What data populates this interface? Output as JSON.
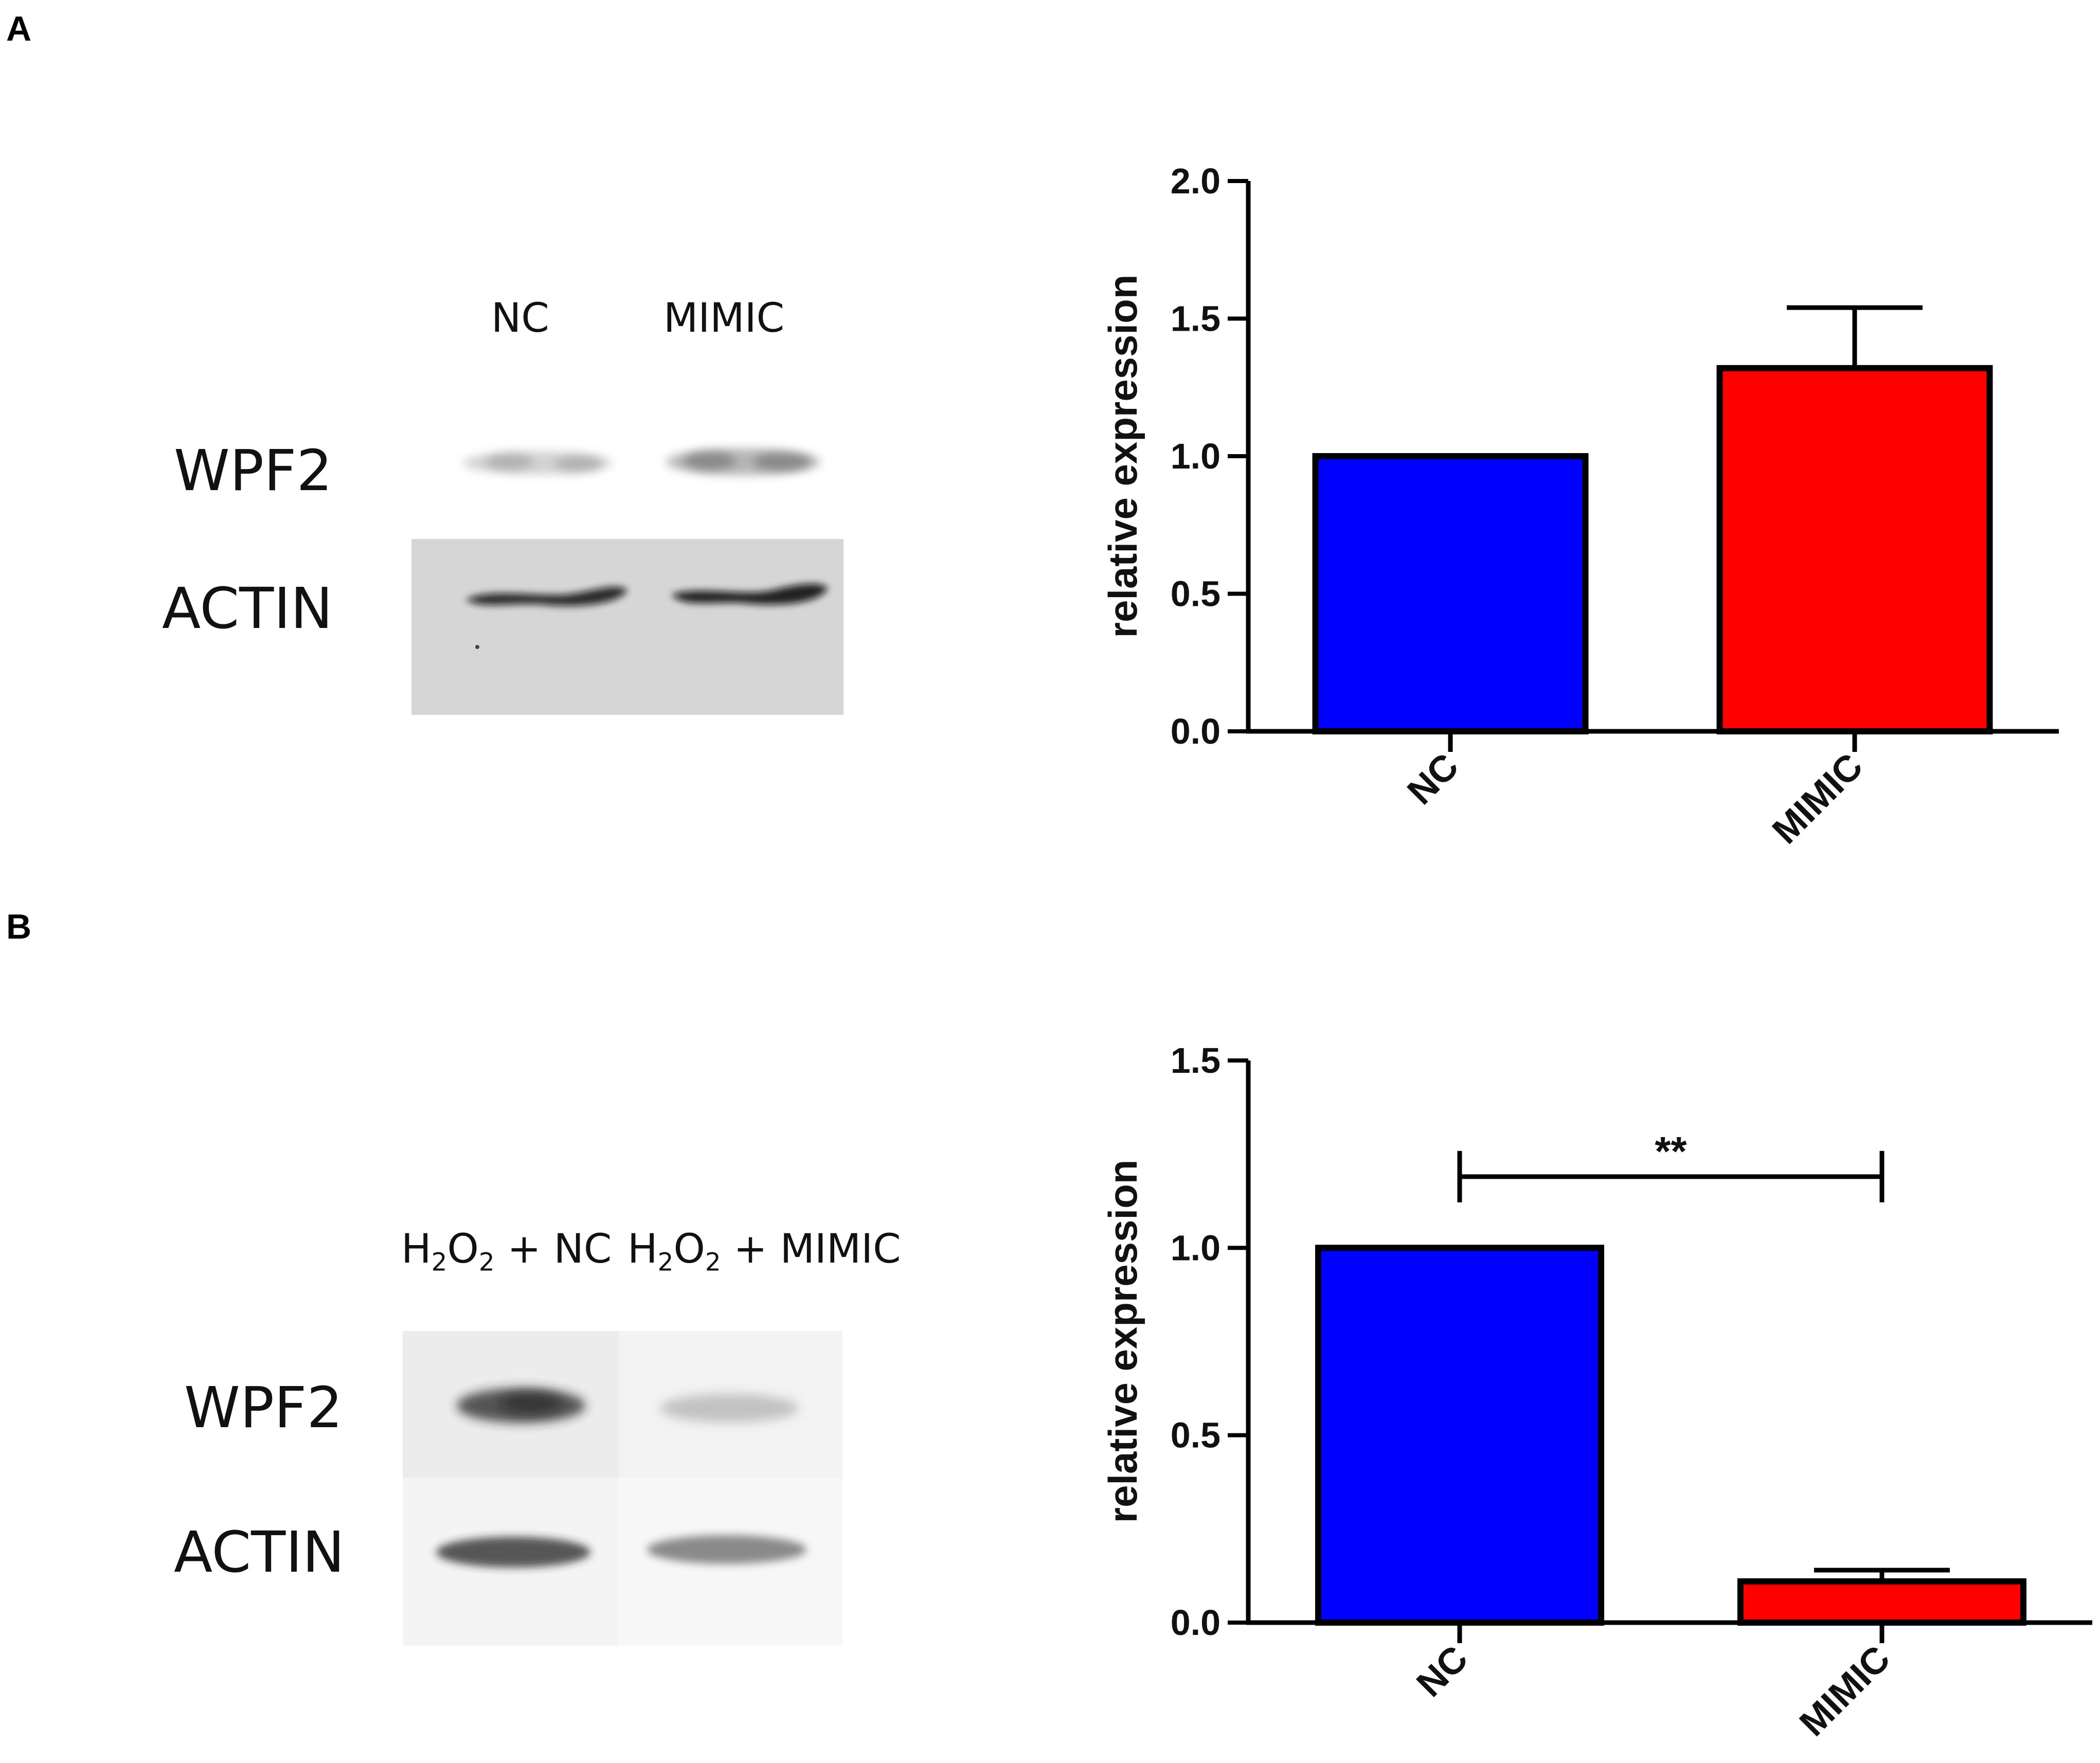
{
  "panels": [
    {
      "letter": "A",
      "blot": {
        "lane_labels": [
          "NC",
          "MIMIC"
        ],
        "row_labels": [
          "WPF2",
          "ACTIN"
        ]
      }
    },
    {
      "letter": "B",
      "blot": {
        "lane_labels": [
          {
            "pre": "H",
            "sub1": "2",
            "mid": "O",
            "sub2": "2",
            "post": " + NC"
          },
          {
            "pre": "H",
            "sub1": "2",
            "mid": "O",
            "sub2": "2",
            "post": " + MIMIC"
          }
        ],
        "row_labels": [
          "WPF2",
          "ACTIN"
        ]
      }
    }
  ],
  "colors": {
    "nc": "#0000ff",
    "mimic": "#ff0000",
    "axis": "#000000"
  },
  "chart_data": [
    {
      "type": "bar",
      "categories": [
        "NC",
        "MIMIC"
      ],
      "values": [
        1.0,
        1.32
      ],
      "errors": [
        0,
        0.22
      ],
      "ylabel": "relative expression",
      "ylim": [
        0,
        2.0
      ],
      "yticks": [
        "0.0",
        "0.5",
        "1.0",
        "1.5",
        "2.0"
      ],
      "ytick_values": [
        0,
        0.5,
        1.0,
        1.5,
        2.0
      ],
      "significance": null
    },
    {
      "type": "bar",
      "categories": [
        "NC",
        "MIMIC"
      ],
      "values": [
        1.0,
        0.11
      ],
      "errors": [
        0,
        0.03
      ],
      "ylabel": "relative expression",
      "ylim": [
        0,
        1.5
      ],
      "yticks": [
        "0.0",
        "0.5",
        "1.0",
        "1.5"
      ],
      "ytick_values": [
        0,
        0.5,
        1.0,
        1.5
      ],
      "significance": {
        "label": "**",
        "from": 0,
        "to": 1,
        "y": 1.19
      }
    }
  ]
}
